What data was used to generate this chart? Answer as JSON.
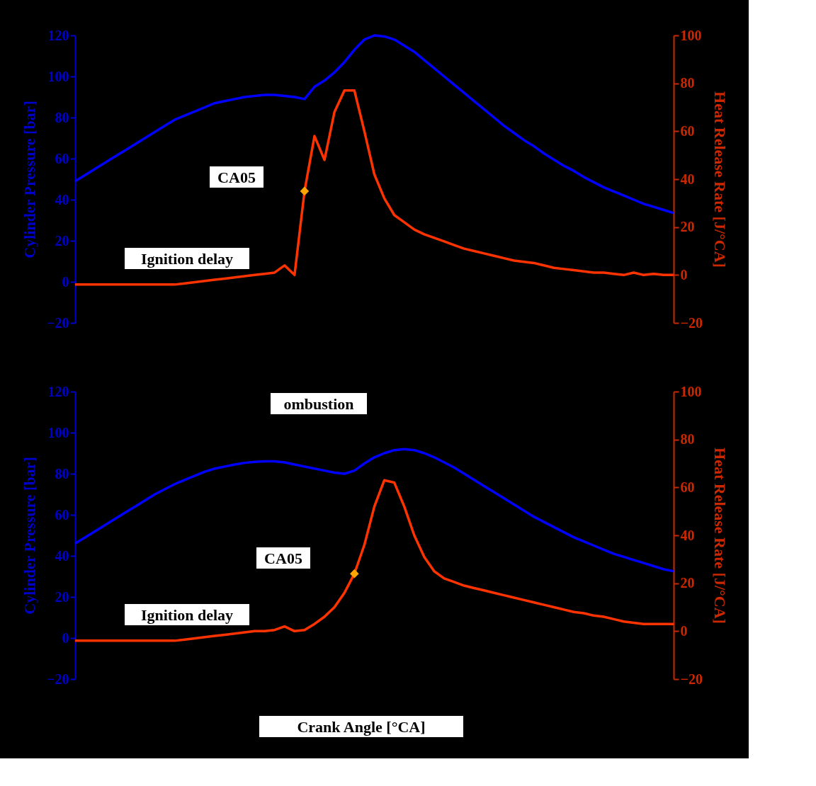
{
  "chart_data": [
    {
      "type": "line",
      "categories": [
        null,
        null,
        null,
        null,
        null,
        null,
        null,
        null,
        null,
        null,
        null,
        null,
        null,
        null,
        null,
        null,
        null,
        null,
        null,
        null,
        null,
        null,
        null,
        null,
        null,
        null,
        null,
        null,
        null,
        null,
        null,
        null,
        null,
        null,
        null,
        null,
        null,
        null,
        null,
        null,
        null,
        null,
        null,
        null,
        null,
        null,
        null,
        null,
        null,
        null,
        null,
        null,
        null,
        null,
        null,
        null,
        null,
        null,
        null,
        null,
        null
      ],
      "ylabel": "Cylinder Pressure [bar]",
      "y2label": "Heat Release Rate [J/°CA]",
      "ylim": [
        -20,
        120
      ],
      "yticks": [
        -20,
        0,
        20,
        40,
        60,
        80,
        100,
        120
      ],
      "y2lim": [
        -20,
        100
      ],
      "y2ticks": [
        -20,
        0,
        20,
        40,
        60,
        80,
        100
      ],
      "series": [
        {
          "axis": "y",
          "color": "#0000ff",
          "values": [
            49,
            52,
            55,
            58,
            61,
            64,
            67,
            70,
            73,
            76,
            79,
            81,
            83,
            85,
            87,
            88,
            89,
            90,
            90.5,
            91,
            91,
            90.5,
            90,
            89,
            95,
            98,
            102,
            107,
            113,
            118,
            120,
            119.5,
            118,
            115,
            112,
            108,
            104,
            100,
            96,
            92,
            88,
            84,
            80,
            76,
            72.5,
            69,
            66,
            62.5,
            59.5,
            56.5,
            54,
            51,
            48.5,
            46,
            44,
            42,
            40,
            38,
            36.5,
            35,
            33.5
          ]
        },
        {
          "axis": "y2",
          "color": "#ff3300",
          "values": [
            -4,
            -4,
            -4,
            -4,
            -4,
            -4,
            -4,
            -4,
            -4,
            -4,
            -4,
            -3.5,
            -3,
            -2.5,
            -2,
            -1.5,
            -1,
            -0.5,
            0,
            0.5,
            1,
            4,
            0,
            35,
            58,
            48,
            68,
            77,
            77,
            60,
            42,
            32,
            25,
            22,
            19,
            17,
            15.5,
            14,
            12.5,
            11,
            10,
            9,
            8,
            7,
            6,
            5.5,
            5,
            4,
            3,
            2.5,
            2,
            1.5,
            1,
            1,
            0.5,
            0,
            1,
            0,
            0.5,
            0,
            0
          ]
        },
        {
          "type": "scatter",
          "axis": "y2",
          "marker": "diamond",
          "color": "#ffa500",
          "values": [
            null,
            null,
            null,
            null,
            null,
            null,
            null,
            null,
            null,
            null,
            null,
            null,
            null,
            null,
            null,
            null,
            null,
            null,
            null,
            null,
            null,
            null,
            null,
            35,
            null,
            null,
            null,
            null,
            null,
            null,
            null,
            null,
            null,
            null,
            null,
            null,
            null,
            null,
            null,
            null,
            null,
            null,
            null,
            null,
            null,
            null,
            null,
            null,
            null,
            null,
            null,
            null,
            null,
            null,
            null,
            null,
            null,
            null,
            null,
            null,
            null
          ]
        }
      ],
      "annotations": [
        "CA05",
        "Ignition delay"
      ]
    },
    {
      "type": "line",
      "categories": [
        null,
        null,
        null,
        null,
        null,
        null,
        null,
        null,
        null,
        null,
        null,
        null,
        null,
        null,
        null,
        null,
        null,
        null,
        null,
        null,
        null,
        null,
        null,
        null,
        null,
        null,
        null,
        null,
        null,
        null,
        null,
        null,
        null,
        null,
        null,
        null,
        null,
        null,
        null,
        null,
        null,
        null,
        null,
        null,
        null,
        null,
        null,
        null,
        null,
        null,
        null,
        null,
        null,
        null,
        null,
        null,
        null,
        null,
        null,
        null,
        null
      ],
      "xlabel": "Crank Angle [°CA]",
      "ylabel": "Cylinder Pressure [bar]",
      "y2label": "Heat Release Rate [J/°CA]",
      "ylim": [
        -20,
        120
      ],
      "yticks": [
        -20,
        0,
        20,
        40,
        60,
        80,
        100,
        120
      ],
      "y2lim": [
        -20,
        100
      ],
      "y2ticks": [
        -20,
        0,
        20,
        40,
        60,
        80,
        100
      ],
      "series": [
        {
          "axis": "y",
          "color": "#0000ff",
          "values": [
            46,
            49,
            52,
            55,
            58,
            61,
            64,
            67,
            70,
            72.5,
            75,
            77,
            79,
            81,
            82.5,
            83.5,
            84.5,
            85.3,
            85.8,
            86,
            86,
            85.5,
            84.5,
            83.5,
            82.5,
            81.5,
            80.5,
            80,
            81.5,
            85,
            88,
            90,
            91.5,
            92,
            91.5,
            90,
            88,
            85.5,
            83,
            80,
            77,
            74,
            71,
            68,
            65,
            62,
            59,
            56.5,
            54,
            51.5,
            49,
            47,
            45,
            43,
            41,
            39.5,
            38,
            36.5,
            35,
            33.5,
            32.5
          ]
        },
        {
          "axis": "y2",
          "color": "#ff3300",
          "values": [
            -4,
            -4,
            -4,
            -4,
            -4,
            -4,
            -4,
            -4,
            -4,
            -4,
            -4,
            -3.5,
            -3,
            -2.5,
            -2,
            -1.5,
            -1,
            -0.5,
            0,
            0,
            0.5,
            2,
            0,
            0.5,
            3,
            6,
            10,
            16,
            24,
            36,
            52,
            63,
            62,
            52,
            40,
            31,
            25,
            22,
            20.5,
            19,
            18,
            17,
            16,
            15,
            14,
            13,
            12,
            11,
            10,
            9,
            8,
            7.5,
            6.5,
            6,
            5,
            4,
            3.5,
            3,
            3,
            3,
            3
          ]
        },
        {
          "type": "scatter",
          "axis": "y2",
          "marker": "diamond",
          "color": "#ffa500",
          "values": [
            null,
            null,
            null,
            null,
            null,
            null,
            null,
            null,
            null,
            null,
            null,
            null,
            null,
            null,
            null,
            null,
            null,
            null,
            null,
            null,
            null,
            null,
            null,
            null,
            null,
            null,
            null,
            null,
            24,
            null,
            null,
            null,
            null,
            null,
            null,
            null,
            null,
            null,
            null,
            null,
            null,
            null,
            null,
            null,
            null,
            null,
            null,
            null,
            null,
            null,
            null,
            null,
            null,
            null,
            null,
            null,
            null,
            null,
            null,
            null,
            null
          ]
        }
      ],
      "annotations": [
        "CA05",
        "Ignition delay",
        "ombustion"
      ]
    }
  ]
}
